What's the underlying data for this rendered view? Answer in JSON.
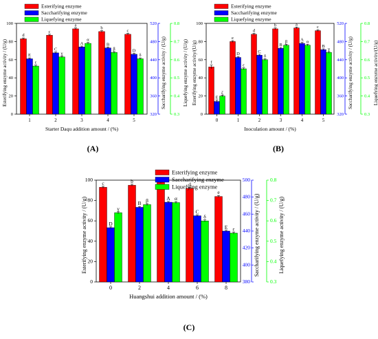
{
  "colors": {
    "esterifying": "#ff0000",
    "saccharifying": "#0000ff",
    "liquefying": "#00ff00",
    "axis": "#000000"
  },
  "panels_meta": {
    "panel_labels": [
      "(A)",
      "(B)",
      "(C)"
    ]
  },
  "chart_data": [
    {
      "type": "bar",
      "panel": "(A)",
      "xlabel": "Starter Daqu addition amount / (%)",
      "ylabel_left": "Esterifying enzyme activity / (U/g)",
      "ylabel_mid": "Saccharifying enzyme activity / (U/g)",
      "ylabel_right": "Liquefying enzyme activity / (U/g)",
      "categories": [
        "1",
        "2",
        "3",
        "4",
        "5"
      ],
      "axes": {
        "left": {
          "min": 0,
          "max": 100,
          "ticks": [
            0,
            20,
            40,
            60,
            80,
            100
          ],
          "tick_labels": [
            "0",
            "20",
            "40",
            "60",
            "80",
            "100"
          ]
        },
        "mid": {
          "min": 320,
          "max": 520,
          "ticks": [
            320,
            360,
            400,
            440,
            480,
            520
          ],
          "tick_labels": [
            "320",
            "360",
            "400",
            "440",
            "480",
            "520"
          ]
        },
        "right": {
          "min": 0.3,
          "max": 0.8,
          "ticks": [
            0.3,
            0.4,
            0.5,
            0.6,
            0.7,
            0.8
          ],
          "tick_labels": [
            "0.3",
            "0.4",
            "0.5",
            "0.6",
            "0.7",
            "0.8"
          ]
        }
      },
      "legend": [
        "Esterifying enzyme",
        "Saccharifying enzyme",
        "Liquefying enzyme"
      ],
      "legend_position": "top-left",
      "series": [
        {
          "name": "Esterifying enzyme",
          "axis": "left",
          "values": [
            83,
            87,
            94,
            91,
            88
          ],
          "errors": [
            1,
            1,
            1,
            1,
            1
          ],
          "letters": [
            "d",
            "c",
            "a",
            "b",
            "c"
          ]
        },
        {
          "name": "Saccharifying enzyme",
          "axis": "mid",
          "values": [
            442,
            455,
            468,
            466,
            452
          ],
          "errors": [
            2,
            2,
            2,
            2,
            2
          ],
          "letters": [
            "E",
            "C",
            "A",
            "B",
            "D"
          ]
        },
        {
          "name": "Liquefying enzyme",
          "axis": "right",
          "values": [
            0.565,
            0.615,
            0.69,
            0.64,
            0.605
          ],
          "errors": [
            0.005,
            0.005,
            0.005,
            0.005,
            0.005
          ],
          "letters": [
            "ε",
            "γ",
            "α",
            "β",
            "δ"
          ]
        }
      ]
    },
    {
      "type": "bar",
      "panel": "(B)",
      "xlabel": "Inoculation amount / (%)",
      "ylabel_left": "Esterifying enzyme activity/(U/g)",
      "ylabel_mid": "Saccharifying enzyme activity / (U/g)",
      "ylabel_right": "Liquefying enzyme activity/(U/g)",
      "categories": [
        "0",
        "1",
        "2",
        "3",
        "4",
        "5"
      ],
      "axes": {
        "left": {
          "min": 0,
          "max": 100,
          "ticks": [
            0,
            20,
            40,
            60,
            80,
            100
          ],
          "tick_labels": [
            "0",
            "20",
            "40",
            "60",
            "80",
            "100"
          ]
        },
        "mid": {
          "min": 320,
          "max": 520,
          "ticks": [
            320,
            360,
            400,
            440,
            480,
            520
          ],
          "tick_labels": [
            "320",
            "360",
            "400",
            "440",
            "480",
            "520"
          ]
        },
        "right": {
          "min": 0.3,
          "max": 0.8,
          "ticks": [
            0.3,
            0.4,
            0.5,
            0.6,
            0.7,
            0.8
          ],
          "tick_labels": [
            "0.3",
            "0.4",
            "0.5",
            "0.6",
            "0.7",
            "0.8"
          ]
        }
      },
      "legend": [
        "Esterifying enzyme",
        "Saccharifying enzyme",
        "Liquefying enzyme"
      ],
      "legend_position": "top-left",
      "series": [
        {
          "name": "Esterifying enzyme",
          "axis": "left",
          "values": [
            52,
            80,
            88,
            94,
            95,
            92
          ],
          "errors": [
            2,
            1,
            1,
            1,
            1,
            1
          ],
          "letters": [
            "f",
            "e",
            "d",
            "b",
            "a",
            "c"
          ]
        },
        {
          "name": "Saccharifying enzyme",
          "axis": "mid",
          "values": [
            348,
            445,
            450,
            465,
            476,
            462
          ],
          "errors": [
            3,
            2,
            2,
            2,
            2,
            2
          ],
          "letters": [
            "E",
            "D",
            "C",
            "B",
            "A",
            "B"
          ]
        },
        {
          "name": "Liquefying enzyme",
          "axis": "right",
          "values": [
            0.4,
            0.55,
            0.6,
            0.68,
            0.68,
            0.64
          ],
          "errors": [
            0.005,
            0.005,
            0.005,
            0.005,
            0.005,
            0.005
          ],
          "letters": [
            "ζ",
            "ε",
            "δ",
            "β",
            "α",
            "γ"
          ]
        }
      ]
    },
    {
      "type": "bar",
      "panel": "(C)",
      "xlabel": "Huangshui addition amount / (%)",
      "ylabel_left": "Esterifying enzyme activity / (U/g)",
      "ylabel_mid": "Saccharifying enzyme activity / (U/g)",
      "ylabel_right": "Liquefying enzyme activity / (U/g)",
      "categories": [
        "0",
        "2",
        "4",
        "6",
        "8"
      ],
      "axes": {
        "left": {
          "min": 0,
          "max": 100,
          "ticks": [
            0,
            20,
            40,
            60,
            80,
            100
          ],
          "tick_labels": [
            "0",
            "20",
            "40",
            "60",
            "80",
            "100"
          ]
        },
        "mid": {
          "min": 380,
          "max": 500,
          "ticks": [
            380,
            400,
            420,
            440,
            460,
            480,
            500
          ],
          "tick_labels": [
            "380",
            "400",
            "420",
            "440",
            "460",
            "480",
            "500"
          ]
        },
        "right": {
          "min": 0.3,
          "max": 0.8,
          "ticks": [
            0.3,
            0.4,
            0.5,
            0.6,
            0.7,
            0.8
          ],
          "tick_labels": [
            "0.3",
            "0.4",
            "0.5",
            "0.6",
            "0.7",
            "0.8"
          ]
        }
      },
      "legend": [
        "Esterifying enzyme",
        "Saccharifying enzyme",
        "Liquefying enzyme"
      ],
      "legend_position": "top-left",
      "series": [
        {
          "name": "Esterifying enzyme",
          "axis": "left",
          "values": [
            93,
            95,
            98,
            92,
            84
          ],
          "errors": [
            1,
            1,
            1,
            1,
            1
          ],
          "letters": [
            "c",
            "b",
            "a",
            "d",
            "e"
          ]
        },
        {
          "name": "Saccharifying enzyme",
          "axis": "mid",
          "values": [
            444,
            468,
            474,
            458,
            440
          ],
          "errors": [
            1,
            1,
            1,
            1,
            1
          ],
          "letters": [
            "D",
            "B",
            "A",
            "C",
            "E"
          ]
        },
        {
          "name": "Liquefying enzyme",
          "axis": "right",
          "values": [
            0.64,
            0.68,
            0.69,
            0.6,
            0.54
          ],
          "errors": [
            0.005,
            0.005,
            0.005,
            0.005,
            0.005
          ],
          "letters": [
            "γ",
            "β",
            "α",
            "δ",
            "ε"
          ]
        }
      ]
    }
  ]
}
